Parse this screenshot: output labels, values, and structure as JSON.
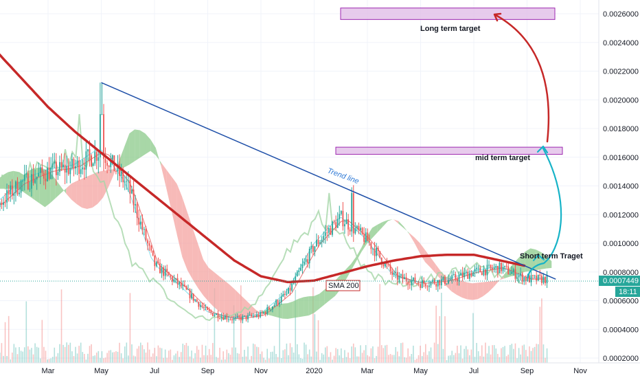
{
  "chart_data": {
    "type": "candlestick",
    "x_axis_labels": [
      "Mar",
      "May",
      "Jul",
      "Sep",
      "Nov",
      "2020",
      "Mar",
      "May",
      "Jul",
      "Sep",
      "Nov"
    ],
    "y_axis_labels": [
      "0.0026000",
      "0.0024000",
      "0.0022000",
      "0.0020000",
      "0.0018000",
      "0.0016000",
      "0.0014000",
      "0.0012000",
      "0.0010000",
      "0.0008000",
      "0.0006000",
      "0.0004000",
      "0.0002000"
    ],
    "ylim": [
      0.00015,
      0.00278
    ],
    "current_price": "0.0007449",
    "countdown": "18:11",
    "annotations": {
      "long_term": "Long term target",
      "mid_term": "mid term target",
      "short_term": "Short term Traget",
      "trend_line": "Trend line",
      "sma": "SMA 200"
    },
    "zones": [
      {
        "label": "Long term target",
        "low": 0.00256,
        "high": 0.00264
      },
      {
        "label": "mid term target",
        "low": 0.00162,
        "high": 0.00167
      }
    ],
    "trend_line": {
      "start": {
        "date": "2019-05",
        "value": 0.00212
      },
      "end": {
        "date": "2020-10",
        "value": 0.00075
      }
    },
    "sma200": [
      [
        "2018-12",
        0.00246
      ],
      [
        "2019-01",
        0.00235
      ],
      [
        "2019-02",
        0.00215
      ],
      [
        "2019-03",
        0.00195
      ],
      [
        "2019-04",
        0.00178
      ],
      [
        "2019-05",
        0.00163
      ],
      [
        "2019-06",
        0.00148
      ],
      [
        "2019-07",
        0.00133
      ],
      [
        "2019-08",
        0.00118
      ],
      [
        "2019-09",
        0.00103
      ],
      [
        "2019-10",
        0.00088
      ],
      [
        "2019-11",
        0.00077
      ],
      [
        "2019-12",
        0.00073
      ],
      [
        "2020-01",
        0.00074
      ],
      [
        "2020-02",
        0.00079
      ],
      [
        "2020-03",
        0.00084
      ],
      [
        "2020-04",
        0.00088
      ],
      [
        "2020-05",
        0.00091
      ],
      [
        "2020-06",
        0.00092
      ],
      [
        "2020-07",
        0.00092
      ],
      [
        "2020-08",
        0.00088
      ],
      [
        "2020-09",
        0.00084
      ]
    ],
    "price_close": [
      [
        "2018-12",
        0.00138
      ],
      [
        "2019-01",
        0.00125
      ],
      [
        "2019-02",
        0.00142
      ],
      [
        "2019-03",
        0.0015
      ],
      [
        "2019-04",
        0.00153
      ],
      [
        "2019-05",
        0.00165
      ],
      [
        "2019-06",
        0.0014
      ],
      [
        "2019-07",
        0.00085
      ],
      [
        "2019-08",
        0.0007
      ],
      [
        "2019-09",
        0.00052
      ],
      [
        "2019-10",
        0.00047
      ],
      [
        "2019-11",
        0.0005
      ],
      [
        "2019-12",
        0.00065
      ],
      [
        "2020-01",
        0.00098
      ],
      [
        "2020-02",
        0.00118
      ],
      [
        "2020-03",
        0.00102
      ],
      [
        "2020-04",
        0.00077
      ],
      [
        "2020-05",
        0.00072
      ],
      [
        "2020-06",
        0.00074
      ],
      [
        "2020-07",
        0.0008
      ],
      [
        "2020-08",
        0.00083
      ],
      [
        "2020-09",
        0.00075
      ]
    ],
    "colors": {
      "up": "#26a69a",
      "down": "#ef5350",
      "sma": "#c62828",
      "trend": "#1e4fa8",
      "zone_fill": "#e1bee7",
      "zone_border": "#9c27b0",
      "cloud_red": "#f4a3a0",
      "cloud_green": "#8bc98a",
      "lagging": "#a5d6a7",
      "base_line": "#e57373",
      "arrow_red": "#c62828",
      "arrow_cyan": "#17b3c7",
      "price_tag": "#26a69a",
      "countdown_tag": "#26a69a"
    }
  }
}
